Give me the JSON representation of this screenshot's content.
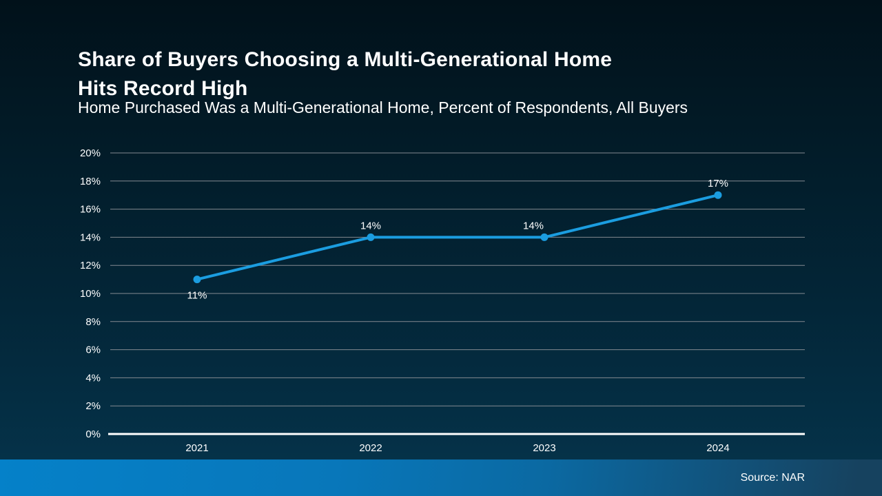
{
  "slide": {
    "title_line1": "Share of Buyers Choosing a Multi-Generational Home",
    "title_line2": "Hits Record High",
    "subtitle": "Home Purchased Was a Multi-Generational Home, Percent of Respondents, All Buyers",
    "source": "Source: NAR"
  },
  "colors": {
    "background_top": "#01111a",
    "background_bottom": "#053249",
    "line": "#1b9de0",
    "gridline": "#848a91",
    "axis": "#ffffff",
    "text": "#ffffff",
    "footer_left": "#0581c9",
    "footer_right": "#16425f"
  },
  "chart_data": {
    "type": "line",
    "title": "Share of Buyers Choosing a Multi-Generational Home Hits Record High",
    "subtitle": "Home Purchased Was a Multi-Generational Home, Percent of Respondents, All Buyers",
    "categories": [
      "2021",
      "2022",
      "2023",
      "2024"
    ],
    "series": [
      {
        "name": "All Buyers",
        "values": [
          11,
          14,
          14,
          17
        ]
      }
    ],
    "point_labels": [
      "11%",
      "14%",
      "14%",
      "17%"
    ],
    "point_label_positions": [
      "below",
      "above",
      "above-left",
      "above"
    ],
    "ylim": [
      0,
      20
    ],
    "ytick_step": 2,
    "ytick_suffix": "%",
    "xlabel": "",
    "ylabel": "",
    "grid": "horizontal",
    "legend": "none",
    "source": "Source: NAR"
  }
}
